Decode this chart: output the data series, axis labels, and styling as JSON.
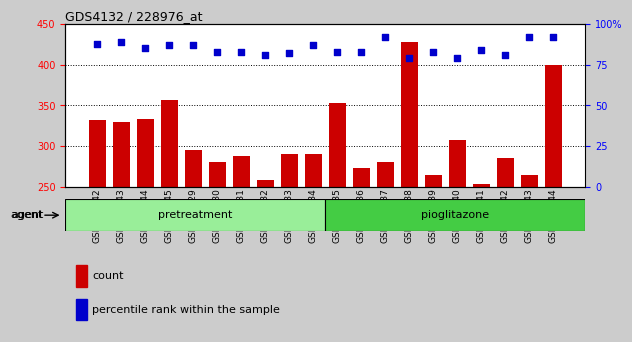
{
  "title": "GDS4132 / 228976_at",
  "samples": [
    "GSM201542",
    "GSM201543",
    "GSM201544",
    "GSM201545",
    "GSM201829",
    "GSM201830",
    "GSM201831",
    "GSM201832",
    "GSM201833",
    "GSM201834",
    "GSM201835",
    "GSM201836",
    "GSM201837",
    "GSM201838",
    "GSM201839",
    "GSM201840",
    "GSM201841",
    "GSM201842",
    "GSM201843",
    "GSM201844"
  ],
  "counts_full": [
    332,
    330,
    333,
    357,
    295,
    281,
    288,
    258,
    290,
    290,
    353,
    273,
    280,
    428,
    265,
    308,
    253,
    285,
    265,
    400
  ],
  "percentile_full": [
    88,
    89,
    85,
    87,
    87,
    83,
    83,
    81,
    82,
    87,
    83,
    83,
    92,
    79,
    83,
    79,
    84,
    81,
    92,
    92
  ],
  "bar_color": "#cc0000",
  "dot_color": "#0000cc",
  "ylim_left": [
    250,
    450
  ],
  "ylim_right": [
    0,
    100
  ],
  "yticks_left": [
    250,
    300,
    350,
    400,
    450
  ],
  "yticks_right": [
    0,
    25,
    50,
    75,
    100
  ],
  "n_pretreatment": 10,
  "n_pioglitazone": 10,
  "pretreatment_color": "#99ee99",
  "pioglitazone_color": "#44cc44",
  "agent_label": "agent",
  "legend_count_label": "count",
  "legend_pct_label": "percentile rank within the sample",
  "bg_color": "#cccccc",
  "plot_bg_color": "#ffffff",
  "title_fontsize": 9,
  "tick_fontsize": 7,
  "bar_label_fontsize": 6.5,
  "label_fontsize": 8
}
